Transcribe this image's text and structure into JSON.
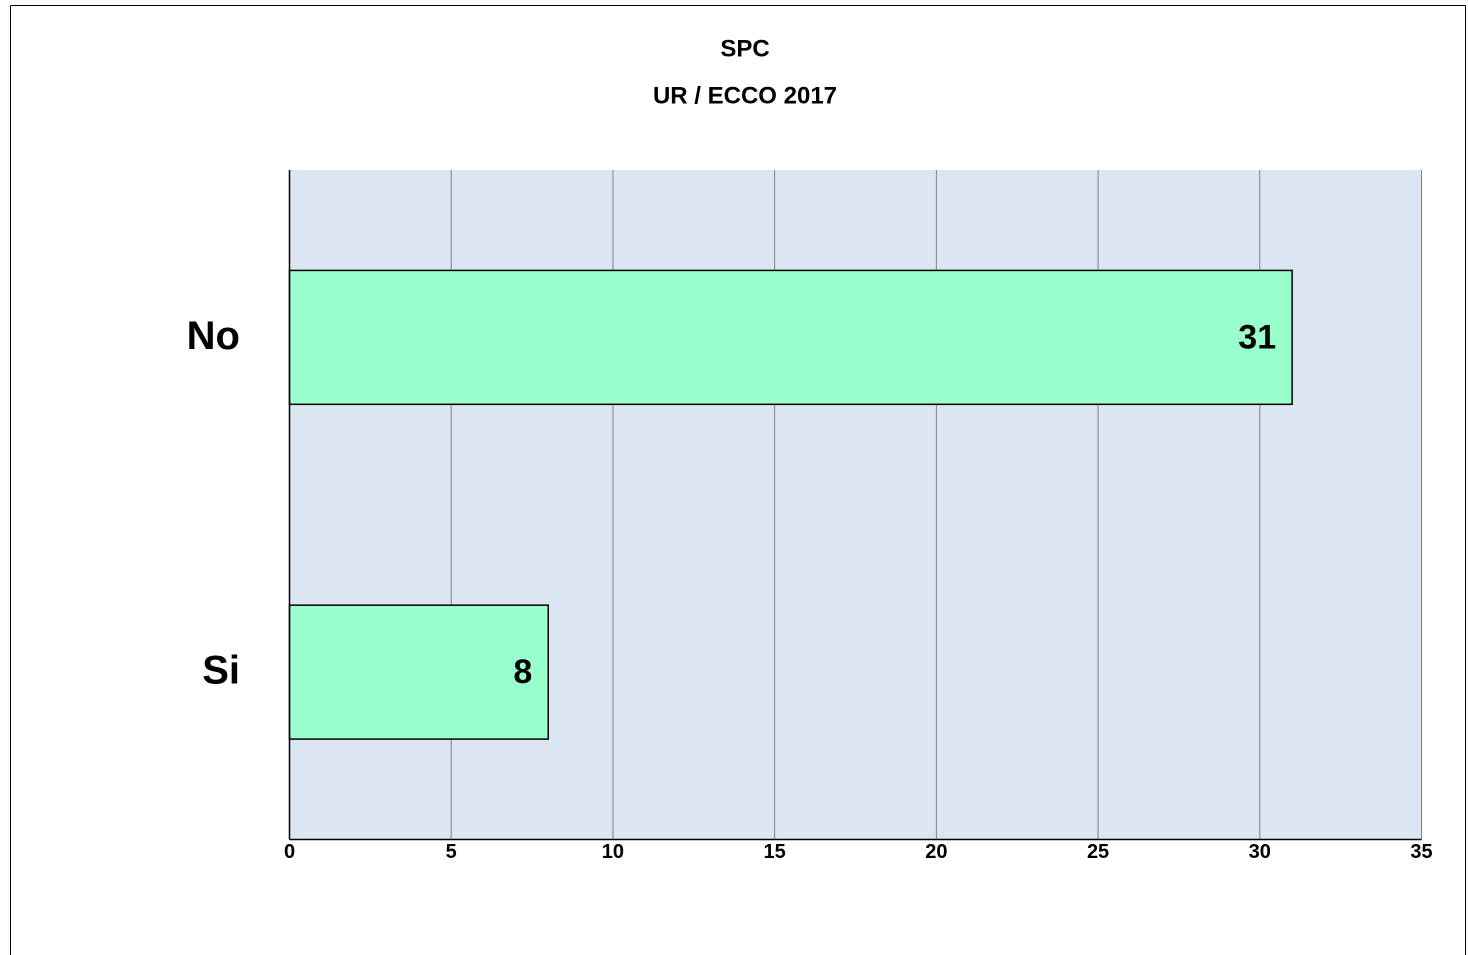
{
  "chart_data": {
    "type": "barh",
    "title": "SPC",
    "subtitle": "UR / ECCO 2017",
    "categories": [
      "No",
      "Si"
    ],
    "values": [
      31,
      8
    ],
    "color": "#99ffcc",
    "xlim": [
      0,
      35
    ],
    "xticks": [
      0,
      5,
      10,
      15,
      20,
      25,
      30,
      35
    ],
    "grid": true
  }
}
